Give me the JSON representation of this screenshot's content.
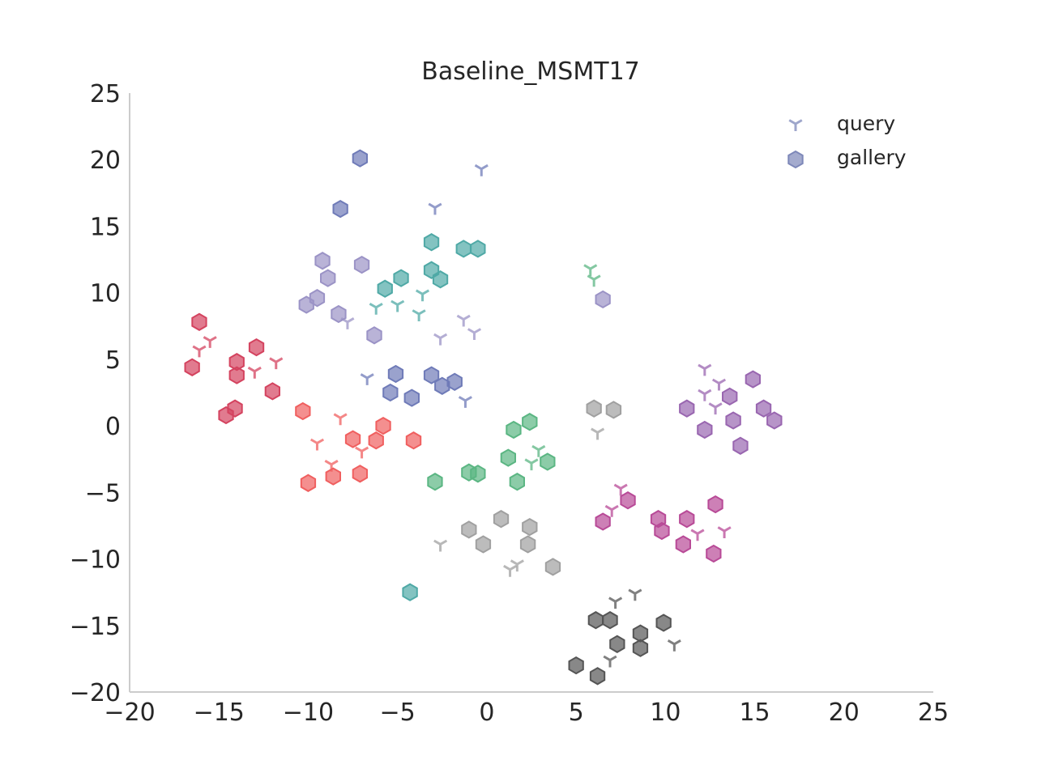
{
  "chart_data": {
    "type": "scatter",
    "title": "Baseline_MSMT17",
    "xlabel": "",
    "ylabel": "",
    "xlim": [
      -20,
      25
    ],
    "ylim": [
      -20,
      25
    ],
    "xticks": [
      -20,
      -15,
      -10,
      -5,
      0,
      5,
      10,
      15,
      20,
      25
    ],
    "yticks": [
      -20,
      -15,
      -10,
      -5,
      0,
      5,
      10,
      15,
      20,
      25
    ],
    "grid": false,
    "legend_position": "top-right",
    "legend": [
      {
        "label": "query",
        "marker": "tri",
        "color": "#7e88b9"
      },
      {
        "label": "gallery",
        "marker": "hexagon",
        "color": "#7e88b9"
      }
    ],
    "groups": [
      {
        "color": "#6f7bb8",
        "query": [
          [
            -0.3,
            19.3
          ],
          [
            -2.9,
            16.4
          ],
          [
            -6.7,
            3.6
          ],
          [
            -1.2,
            1.9
          ]
        ],
        "gallery": [
          [
            -7.1,
            20.1
          ],
          [
            -8.2,
            16.3
          ],
          [
            -5.1,
            3.9
          ],
          [
            -5.4,
            2.5
          ],
          [
            -4.2,
            2.1
          ],
          [
            -3.1,
            3.8
          ],
          [
            -2.5,
            3.0
          ],
          [
            -1.8,
            3.3
          ]
        ]
      },
      {
        "color": "#9b93c6",
        "query": [
          [
            -7.8,
            7.8
          ],
          [
            -2.6,
            6.6
          ],
          [
            -1.3,
            8.0
          ],
          [
            -0.7,
            7.0
          ]
        ],
        "gallery": [
          [
            -9.2,
            12.4
          ],
          [
            -8.9,
            11.1
          ],
          [
            -7.0,
            12.1
          ],
          [
            -10.1,
            9.1
          ],
          [
            -9.5,
            9.6
          ],
          [
            -8.3,
            8.4
          ],
          [
            -6.3,
            6.8
          ],
          [
            6.5,
            9.5
          ]
        ]
      },
      {
        "color": "#4fa9a6",
        "query": [
          [
            -6.2,
            8.9
          ],
          [
            -5.0,
            9.1
          ],
          [
            -3.6,
            9.9
          ],
          [
            -3.8,
            8.4
          ]
        ],
        "gallery": [
          [
            -3.1,
            13.8
          ],
          [
            -1.3,
            13.3
          ],
          [
            -0.5,
            13.3
          ],
          [
            -4.8,
            11.1
          ],
          [
            -5.7,
            10.3
          ],
          [
            -3.1,
            11.7
          ],
          [
            -2.6,
            11.0
          ],
          [
            -4.3,
            -12.5
          ]
        ]
      },
      {
        "color": "#5bb683",
        "query": [
          [
            5.8,
            11.8
          ],
          [
            6.0,
            11.0
          ],
          [
            2.9,
            -1.8
          ],
          [
            2.5,
            -2.8
          ]
        ],
        "gallery": [
          [
            1.5,
            -0.3
          ],
          [
            2.4,
            0.3
          ],
          [
            1.2,
            -2.4
          ],
          [
            1.7,
            -4.2
          ],
          [
            3.4,
            -2.7
          ],
          [
            -2.9,
            -4.2
          ],
          [
            -1.0,
            -3.5
          ],
          [
            -0.5,
            -3.6
          ]
        ]
      },
      {
        "color": "#d4435f",
        "query": [
          [
            -15.5,
            6.4
          ],
          [
            -16.1,
            5.7
          ],
          [
            -13.0,
            4.1
          ],
          [
            -11.8,
            4.8
          ]
        ],
        "gallery": [
          [
            -16.1,
            7.8
          ],
          [
            -16.5,
            4.4
          ],
          [
            -14.0,
            4.8
          ],
          [
            -14.0,
            3.8
          ],
          [
            -12.9,
            5.9
          ],
          [
            -12.0,
            2.6
          ],
          [
            -14.6,
            0.8
          ],
          [
            -14.1,
            1.3
          ]
        ]
      },
      {
        "color": "#f05f5f",
        "query": [
          [
            -8.2,
            0.6
          ],
          [
            -9.5,
            -1.3
          ],
          [
            -8.7,
            -2.9
          ],
          [
            -7.0,
            -1.9
          ]
        ],
        "gallery": [
          [
            -10.3,
            1.1
          ],
          [
            -7.5,
            -1.0
          ],
          [
            -6.2,
            -1.1
          ],
          [
            -5.8,
            0.0
          ],
          [
            -4.1,
            -1.1
          ],
          [
            -10.0,
            -4.3
          ],
          [
            -8.6,
            -3.8
          ],
          [
            -7.1,
            -3.6
          ]
        ]
      },
      {
        "color": "#a0a0a0",
        "query": [
          [
            6.2,
            -0.5
          ],
          [
            -2.6,
            -8.9
          ],
          [
            1.3,
            -10.8
          ],
          [
            1.7,
            -10.4
          ]
        ],
        "gallery": [
          [
            6.0,
            1.3
          ],
          [
            7.1,
            1.2
          ],
          [
            -1.0,
            -7.8
          ],
          [
            0.8,
            -7.0
          ],
          [
            2.4,
            -7.6
          ],
          [
            -0.2,
            -8.9
          ],
          [
            2.3,
            -8.9
          ],
          [
            3.7,
            -10.6
          ]
        ]
      },
      {
        "color": "#9966b0",
        "query": [
          [
            12.2,
            4.3
          ],
          [
            13.0,
            3.2
          ],
          [
            12.2,
            2.4
          ],
          [
            12.8,
            1.4
          ]
        ],
        "gallery": [
          [
            14.9,
            3.5
          ],
          [
            13.6,
            2.2
          ],
          [
            11.2,
            1.3
          ],
          [
            15.5,
            1.3
          ],
          [
            16.1,
            0.4
          ],
          [
            13.8,
            0.4
          ],
          [
            12.2,
            -0.3
          ],
          [
            14.2,
            -1.5
          ]
        ]
      },
      {
        "color": "#b84a97",
        "query": [
          [
            7.5,
            -4.7
          ],
          [
            7.0,
            -6.3
          ],
          [
            11.8,
            -8.1
          ],
          [
            13.3,
            -7.9
          ]
        ],
        "gallery": [
          [
            7.9,
            -5.6
          ],
          [
            6.5,
            -7.2
          ],
          [
            9.6,
            -7.0
          ],
          [
            11.2,
            -7.0
          ],
          [
            12.8,
            -5.9
          ],
          [
            9.8,
            -7.9
          ],
          [
            11.0,
            -8.9
          ],
          [
            12.7,
            -9.6
          ]
        ]
      },
      {
        "color": "#555555",
        "query": [
          [
            7.2,
            -13.2
          ],
          [
            8.3,
            -12.6
          ],
          [
            10.5,
            -16.4
          ],
          [
            6.9,
            -17.6
          ]
        ],
        "gallery": [
          [
            6.1,
            -14.6
          ],
          [
            6.9,
            -14.6
          ],
          [
            7.3,
            -16.4
          ],
          [
            8.6,
            -15.6
          ],
          [
            8.6,
            -16.7
          ],
          [
            9.9,
            -14.8
          ],
          [
            5.0,
            -18.0
          ],
          [
            6.2,
            -18.8
          ]
        ]
      }
    ]
  }
}
